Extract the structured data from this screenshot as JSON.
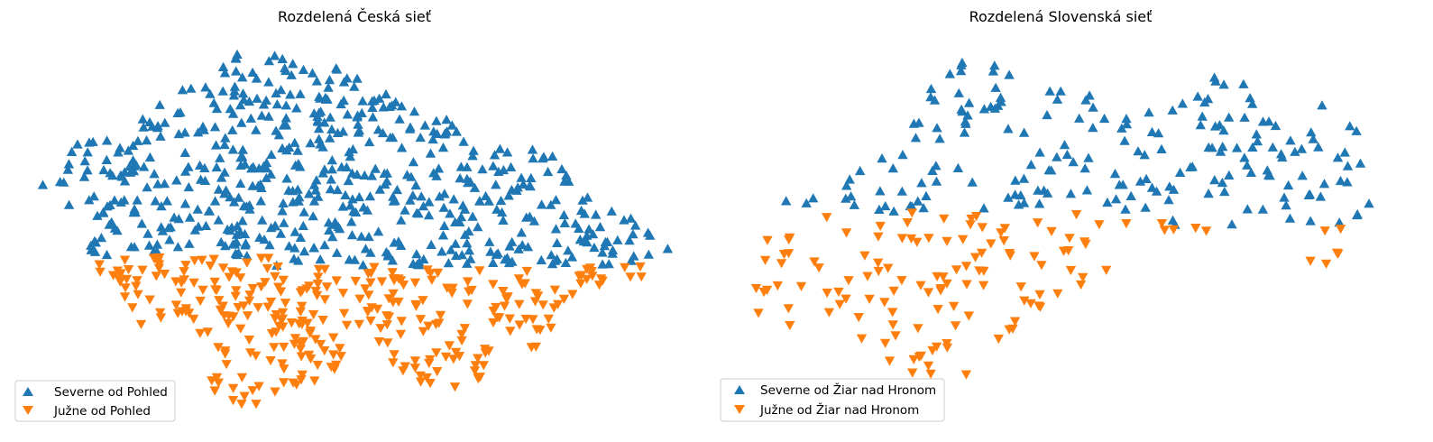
{
  "chart_data": [
    {
      "type": "scatter",
      "title": "Rozdelená Česká sieť",
      "xlabel": "",
      "ylabel": "",
      "axes": "off",
      "legend_position": "lower-left",
      "series": [
        {
          "name": "Severne od Pohled",
          "marker": "triangle-up",
          "color": "#1f77b4",
          "points": []
        },
        {
          "name": "Južne od Pohled",
          "marker": "triangle-down",
          "color": "#ff7f0e",
          "points": []
        }
      ]
    },
    {
      "type": "scatter",
      "title": "Rozdelená Slovenská sieť",
      "xlabel": "",
      "ylabel": "",
      "axes": "off",
      "legend_position": "lower-left",
      "series": [
        {
          "name": "Severne od Žiar nad Hronom",
          "marker": "triangle-up",
          "color": "#1f77b4",
          "points": []
        },
        {
          "name": "Južne od Žiar nad Hronom",
          "marker": "triangle-down",
          "color": "#ff7f0e",
          "points": []
        }
      ]
    }
  ]
}
